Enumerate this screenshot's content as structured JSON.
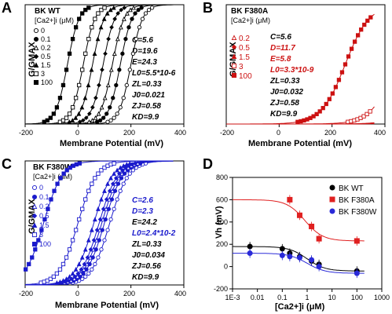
{
  "panels": [
    {
      "letter": "A",
      "title": "BK WT",
      "legend_title": "[Ca2+]i (μM)",
      "legend": [
        "0",
        "0.1",
        "0.2",
        "0.5",
        "1.5",
        "3",
        "100"
      ],
      "color": "#000000",
      "params": [
        "C=5.6",
        "D=19.6",
        "E=24.3",
        "L0=5.5*10-6",
        "ZL=0.33",
        "J0=0.021",
        "ZJ=0.58",
        "KD=9.9"
      ],
      "xlabel": "Membrane Potential (mV)",
      "ylabel": "G/GMAX",
      "xticks": [
        "-200",
        "0",
        "200",
        "400"
      ],
      "chart_data": {
        "type": "scatter",
        "xlim": [
          -200,
          400
        ],
        "ylim": [
          0,
          1
        ],
        "v_half": [
          200,
          160,
          130,
          95,
          55,
          20,
          -40
        ],
        "slope": [
          22,
          22,
          22,
          22,
          22,
          22,
          22
        ]
      }
    },
    {
      "letter": "B",
      "title": "BK F380A",
      "legend_title": "[Ca2+]i (μM)",
      "legend": [
        "0.2",
        "0.5",
        "1.5",
        "3",
        "100"
      ],
      "color": "#cc1111",
      "params": [
        "C=5.6",
        "D=11.7",
        "E=5.8",
        "L0=3.3*10-9",
        "ZL=0.33",
        "J0=0.032",
        "ZJ=0.58",
        "KD=9.9"
      ],
      "param_colors": [
        "#000000",
        "#cc1111",
        "#cc1111",
        "#cc1111",
        "#000000",
        "#000000",
        "#000000",
        "#000000"
      ],
      "xlabel": "Membrane Potential (mV)",
      "ylabel": "G/GMAX",
      "xticks": [
        "-200",
        "0",
        "200",
        "400"
      ],
      "chart_data": {
        "type": "scatter",
        "xlim": [
          -200,
          400
        ],
        "ylim": [
          0,
          1
        ],
        "v_half": [
          620,
          590,
          560,
          440,
          250
        ],
        "slope": [
          45,
          45,
          45,
          45,
          45
        ]
      }
    },
    {
      "letter": "C",
      "title": "BK F380W",
      "legend_title": "[Ca2+]i (μM)",
      "legend": [
        "0",
        "0.1",
        "0.2",
        "0.5",
        "1.5",
        "3",
        "100"
      ],
      "color": "#1a1acc",
      "params": [
        "C=2.6",
        "D=2.3",
        "E=24.2",
        "L0=2.4*10-2",
        "ZL=0.33",
        "J0=0.034",
        "ZJ=0.56",
        "KD=9.9"
      ],
      "param_colors": [
        "#1a1acc",
        "#1a1acc",
        "#000000",
        "#1a1acc",
        "#000000",
        "#000000",
        "#000000",
        "#000000"
      ],
      "xlabel": "Membrane Potential (mV)",
      "ylabel": "G/GMAX",
      "xticks": [
        "-200",
        "0",
        "200",
        "400"
      ],
      "chart_data": {
        "type": "scatter",
        "xlim": [
          -200,
          400
        ],
        "ylim": [
          0,
          1
        ],
        "v_half": [
          120,
          100,
          90,
          80,
          60,
          0,
          -130
        ],
        "slope": [
          35,
          35,
          35,
          35,
          35,
          35,
          35
        ]
      }
    }
  ],
  "panel_d": {
    "letter": "D",
    "legend": [
      "BK WT",
      "BK F380A",
      "BK F380W"
    ],
    "ylabel": "Vh (mV)",
    "xlabel": "[Ca2+]i (μM)",
    "yticks": [
      "800",
      "600",
      "400",
      "200",
      "0",
      "-200"
    ],
    "xticks": [
      "1E-3",
      "0.01",
      "0.1",
      "1",
      "10",
      "100",
      "1000"
    ],
    "chart_data": {
      "type": "scatter",
      "xscale": "log",
      "xlim": [
        0.001,
        1000
      ],
      "ylim": [
        -200,
        800
      ],
      "series": [
        {
          "name": "BK WT",
          "color": "#000000",
          "x": [
            0.005,
            0.1,
            0.2,
            0.5,
            1.5,
            3,
            100
          ],
          "y": [
            180,
            160,
            120,
            90,
            50,
            20,
            -40
          ]
        },
        {
          "name": "BK F380A",
          "color": "#e02020",
          "x": [
            0.2,
            0.5,
            1.5,
            3,
            100
          ],
          "y": [
            600,
            460,
            360,
            250,
            230
          ]
        },
        {
          "name": "BK F380W",
          "color": "#2a2ad8",
          "x": [
            0.005,
            0.1,
            0.2,
            0.5,
            1.5,
            3,
            100
          ],
          "y": [
            120,
            100,
            90,
            80,
            60,
            0,
            -60
          ]
        }
      ]
    }
  }
}
